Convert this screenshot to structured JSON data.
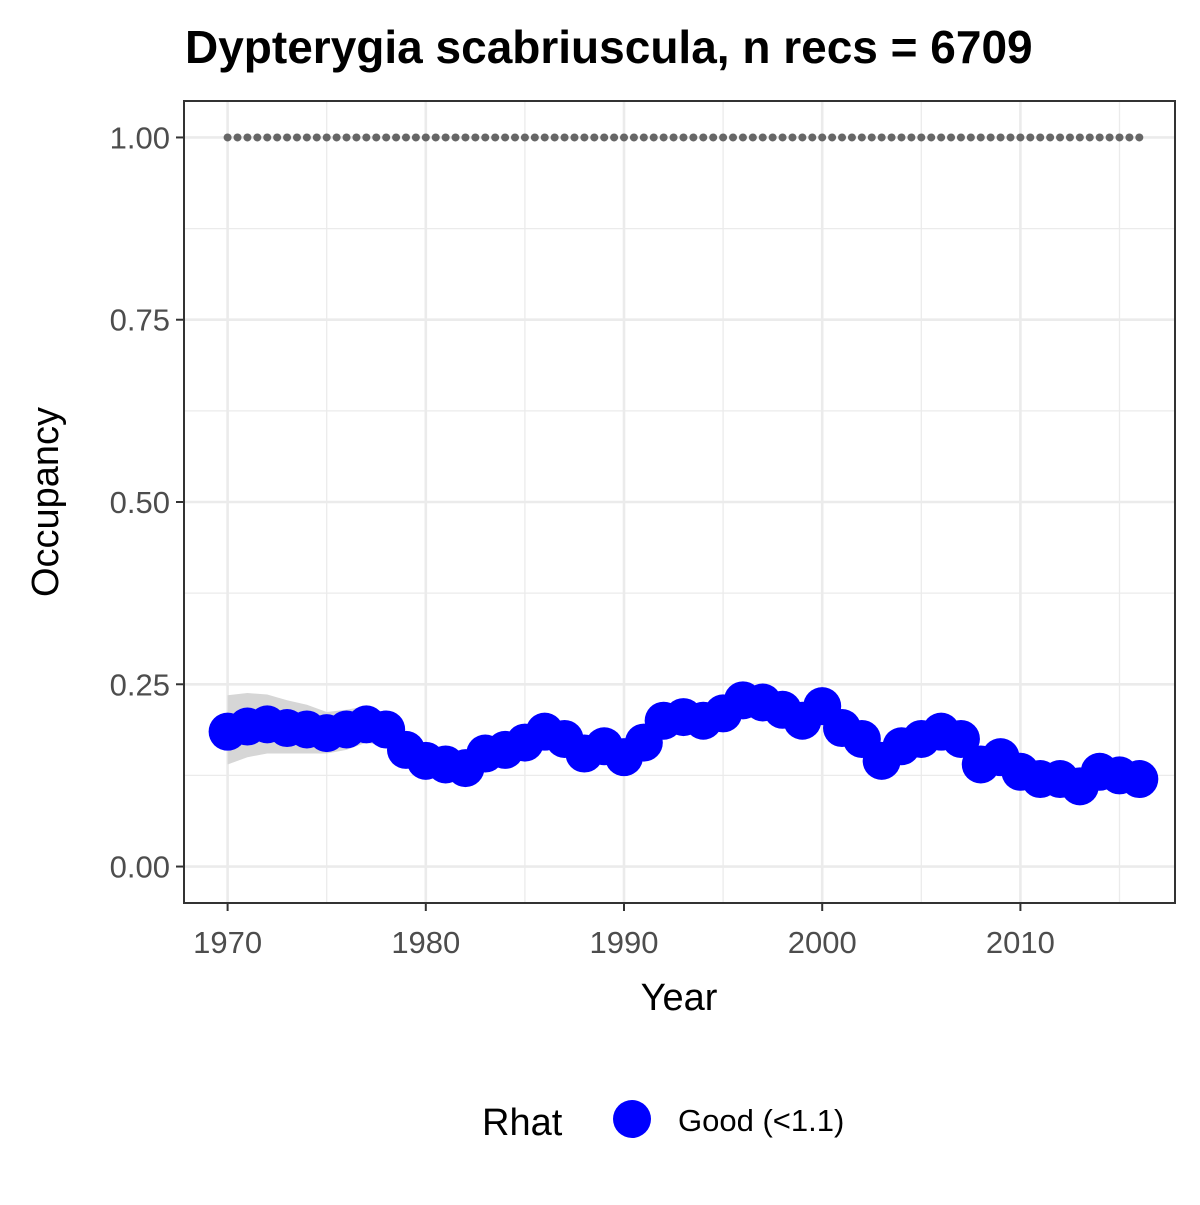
{
  "chart_data": {
    "type": "line",
    "title": "Dypterygia scabriuscula, n recs = 6709",
    "xlabel": "Year",
    "ylabel": "Occupancy",
    "xlim": [
      1967.8,
      2017.8
    ],
    "ylim": [
      -0.05,
      1.05
    ],
    "x_ticks": [
      1970,
      1980,
      1990,
      2000,
      2010
    ],
    "x_tick_labels": [
      "1970",
      "1980",
      "1990",
      "2000",
      "2010"
    ],
    "y_ticks": [
      0,
      0.25,
      0.5,
      0.75,
      1.0
    ],
    "y_tick_labels": [
      "0.00",
      "0.25",
      "0.50",
      "0.75",
      "1.00"
    ],
    "grid": true,
    "legend": {
      "title": "Rhat",
      "position": "bottom",
      "entries": [
        {
          "label": "Good (<1.1)",
          "color": "#0000ff"
        }
      ]
    },
    "colors": {
      "series": "#0000ff",
      "ribbon": "#d6d6d6",
      "reference": "#666666",
      "grid": "#ebebeb",
      "panel_border": "#333333"
    },
    "series": [
      {
        "name": "Good (<1.1)",
        "x": [
          1970,
          1971,
          1972,
          1973,
          1974,
          1975,
          1976,
          1977,
          1978,
          1979,
          1980,
          1981,
          1982,
          1983,
          1984,
          1985,
          1986,
          1987,
          1988,
          1989,
          1990,
          1991,
          1992,
          1993,
          1994,
          1995,
          1996,
          1997,
          1998,
          1999,
          2000,
          2001,
          2002,
          2003,
          2004,
          2005,
          2006,
          2007,
          2008,
          2009,
          2010,
          2011,
          2012,
          2013,
          2014,
          2015,
          2016
        ],
        "values": [
          0.185,
          0.192,
          0.195,
          0.19,
          0.188,
          0.183,
          0.188,
          0.195,
          0.188,
          0.16,
          0.145,
          0.14,
          0.135,
          0.155,
          0.16,
          0.17,
          0.185,
          0.175,
          0.155,
          0.165,
          0.15,
          0.17,
          0.2,
          0.205,
          0.2,
          0.21,
          0.228,
          0.225,
          0.215,
          0.2,
          0.22,
          0.19,
          0.175,
          0.145,
          0.165,
          0.175,
          0.185,
          0.175,
          0.14,
          0.15,
          0.13,
          0.12,
          0.12,
          0.11,
          0.13,
          0.125,
          0.12
        ],
        "lower": [
          0.14,
          0.15,
          0.155,
          0.155,
          0.155,
          0.155,
          0.16,
          0.17,
          0.165,
          0.14,
          0.128,
          0.124,
          0.12,
          0.138,
          0.145,
          0.155,
          0.168,
          0.158,
          0.14,
          0.15,
          0.135,
          0.155,
          0.183,
          0.188,
          0.184,
          0.193,
          0.21,
          0.208,
          0.198,
          0.184,
          0.202,
          0.174,
          0.16,
          0.131,
          0.15,
          0.16,
          0.17,
          0.16,
          0.126,
          0.136,
          0.117,
          0.107,
          0.107,
          0.097,
          0.115,
          0.11,
          0.103
        ],
        "upper": [
          0.235,
          0.238,
          0.236,
          0.228,
          0.222,
          0.212,
          0.215,
          0.22,
          0.21,
          0.18,
          0.163,
          0.157,
          0.151,
          0.172,
          0.176,
          0.186,
          0.202,
          0.192,
          0.171,
          0.18,
          0.166,
          0.186,
          0.217,
          0.222,
          0.217,
          0.227,
          0.246,
          0.243,
          0.232,
          0.216,
          0.238,
          0.207,
          0.19,
          0.16,
          0.18,
          0.19,
          0.2,
          0.19,
          0.155,
          0.165,
          0.143,
          0.133,
          0.134,
          0.123,
          0.145,
          0.14,
          0.138
        ]
      },
      {
        "name": "",
        "style": "dotted",
        "x": [
          1970,
          1971,
          1972,
          1973,
          1974,
          1975,
          1976,
          1977,
          1978,
          1979,
          1980,
          1981,
          1982,
          1983,
          1984,
          1985,
          1986,
          1987,
          1988,
          1989,
          1990,
          1991,
          1992,
          1993,
          1994,
          1995,
          1996,
          1997,
          1998,
          1999,
          2000,
          2001,
          2002,
          2003,
          2004,
          2005,
          2006,
          2007,
          2008,
          2009,
          2010,
          2011,
          2012,
          2013,
          2014,
          2015,
          2016
        ],
        "values": [
          1,
          1,
          1,
          1,
          1,
          1,
          1,
          1,
          1,
          1,
          1,
          1,
          1,
          1,
          1,
          1,
          1,
          1,
          1,
          1,
          1,
          1,
          1,
          1,
          1,
          1,
          1,
          1,
          1,
          1,
          1,
          1,
          1,
          1,
          1,
          1,
          1,
          1,
          1,
          1,
          1,
          1,
          1,
          1,
          1,
          1,
          1
        ]
      }
    ]
  }
}
